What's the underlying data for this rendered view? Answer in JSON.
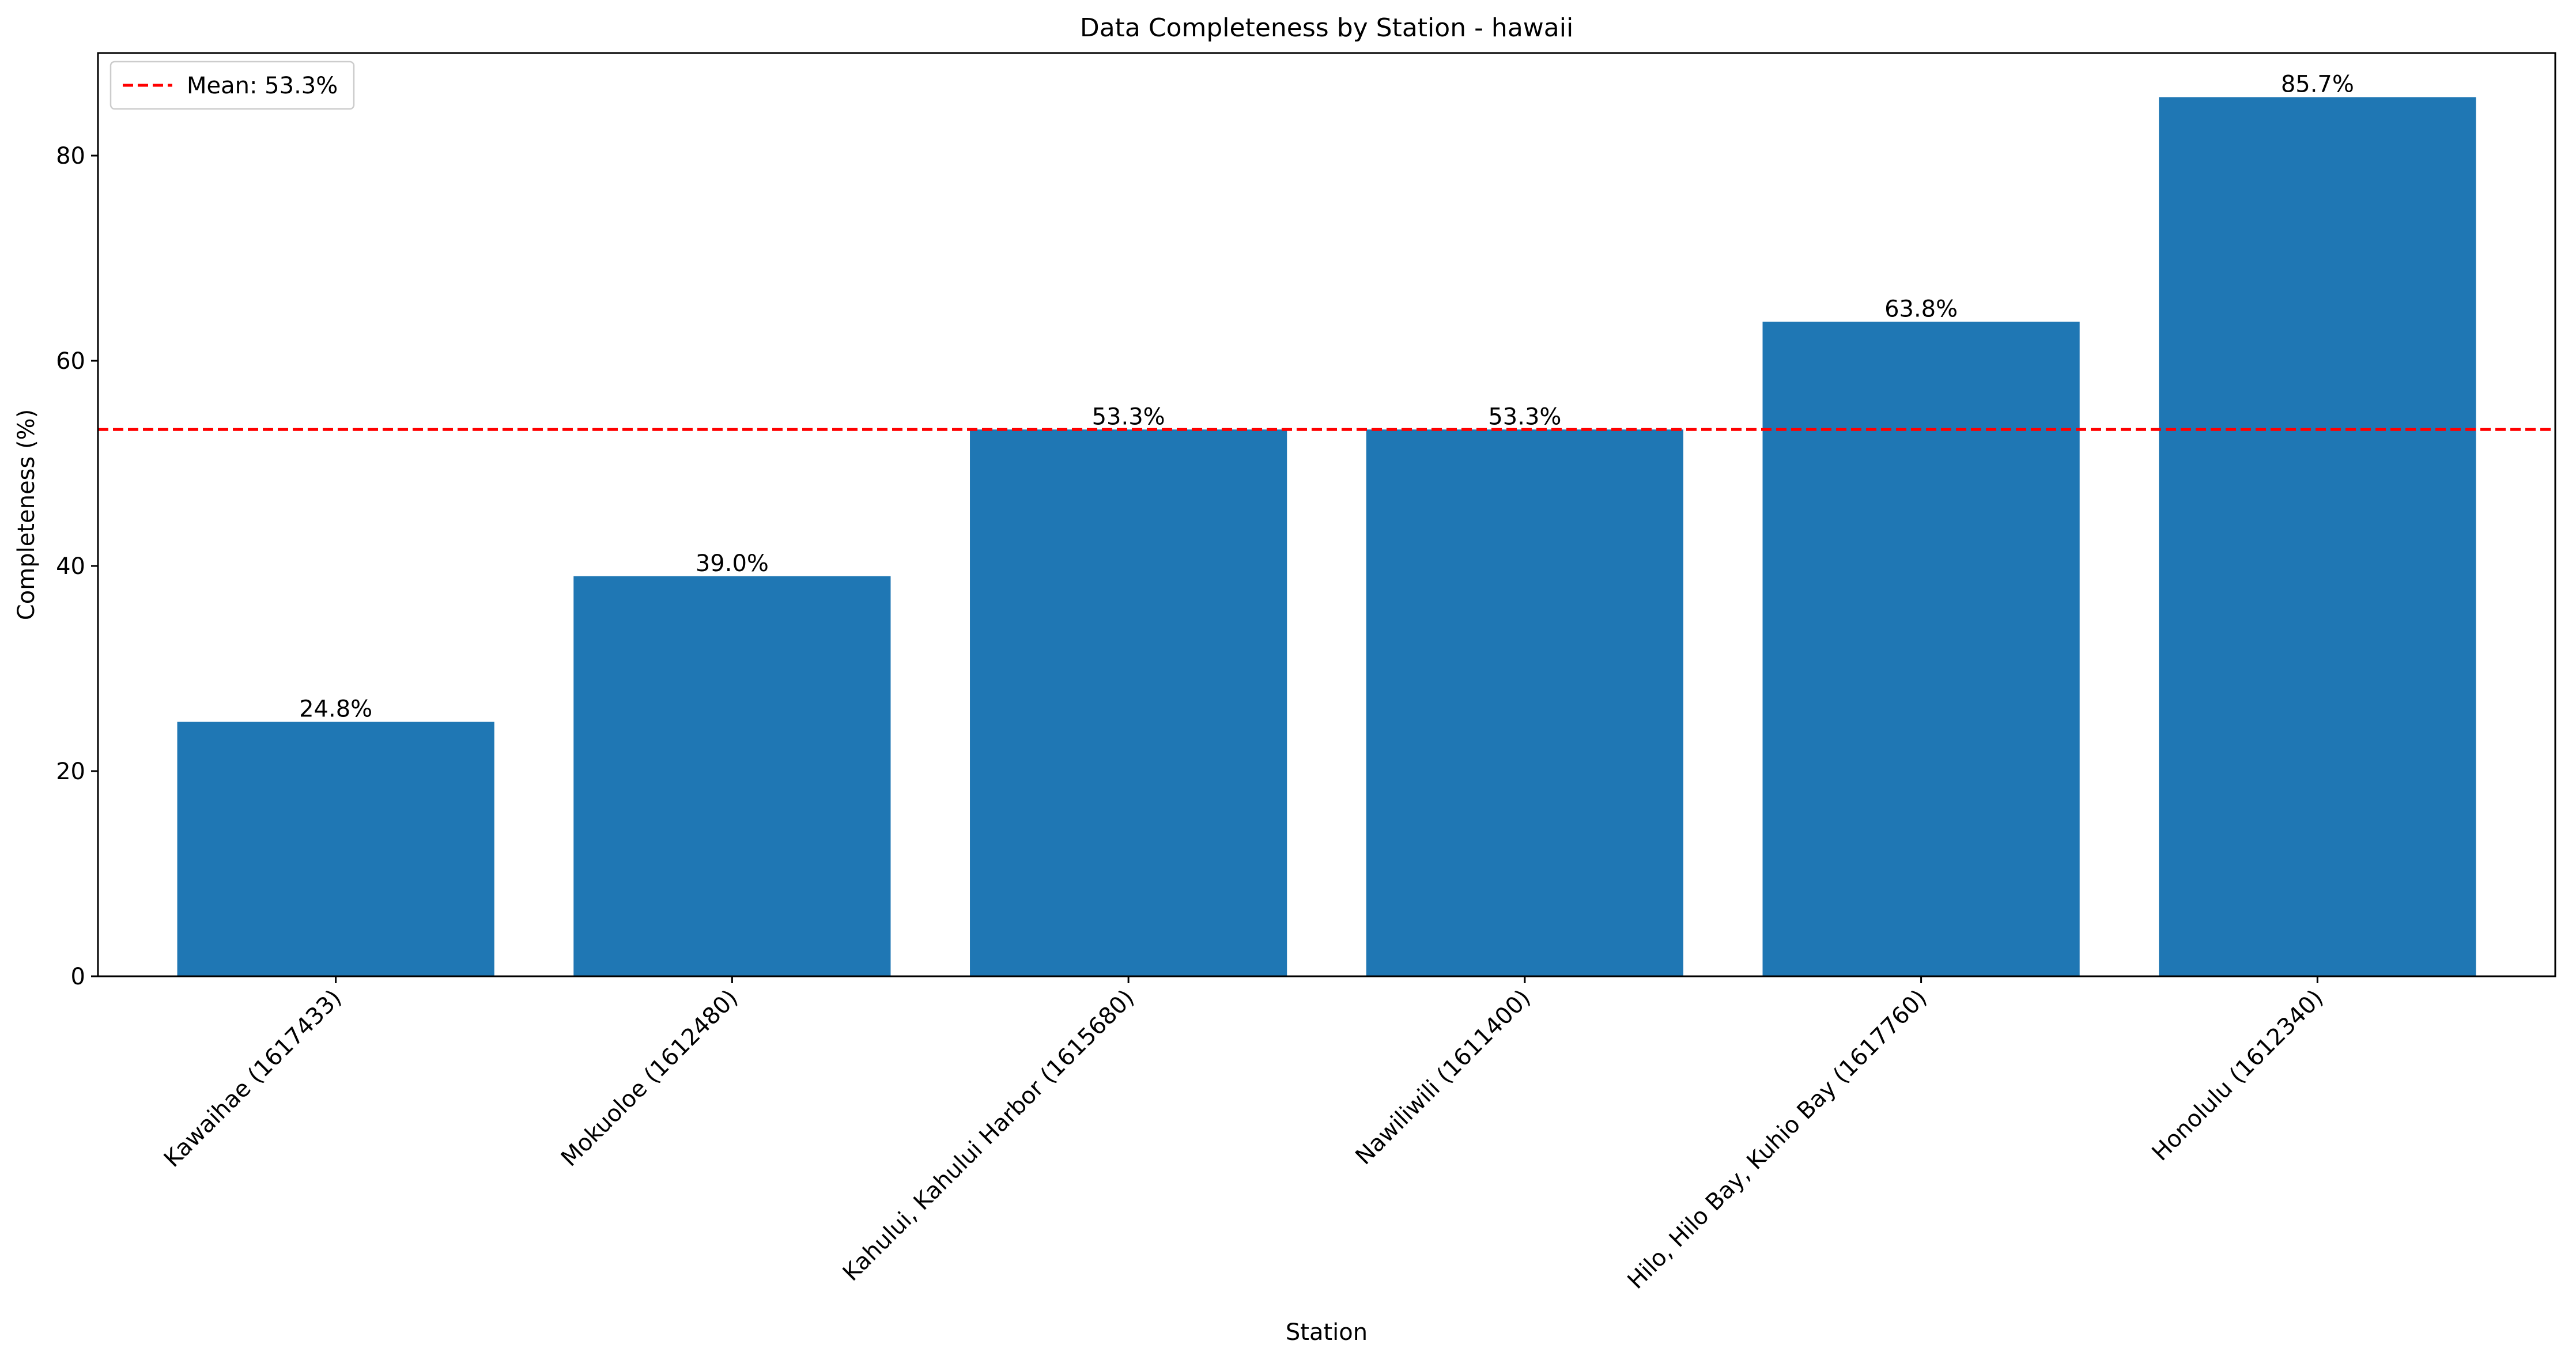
{
  "chart_data": {
    "type": "bar",
    "title": "Data Completeness by Station - hawaii",
    "xlabel": "Station",
    "ylabel": "Completeness (%)",
    "categories": [
      "Kawaihae (1617433)",
      "Mokuoloe (1612480)",
      "Kahului, Kahului Harbor (1615680)",
      "Nawiliwili (1611400)",
      "Hilo, Hilo Bay, Kuhio Bay (1617760)",
      "Honolulu (1612340)"
    ],
    "values": [
      24.8,
      39.0,
      53.3,
      53.3,
      63.8,
      85.7
    ],
    "value_labels": [
      "24.8%",
      "39.0%",
      "53.3%",
      "53.3%",
      "63.8%",
      "85.7%"
    ],
    "ylim": [
      0,
      90
    ],
    "yticks": [
      0,
      20,
      40,
      60,
      80
    ],
    "ytick_labels": [
      "0",
      "20",
      "40",
      "60",
      "80"
    ],
    "mean_line": {
      "value": 53.3,
      "label": "Mean: 53.3%",
      "color": "#ff0000",
      "style": "dashed"
    },
    "bar_color": "#1f77b4",
    "grid": false,
    "legend_position": "top-left"
  }
}
